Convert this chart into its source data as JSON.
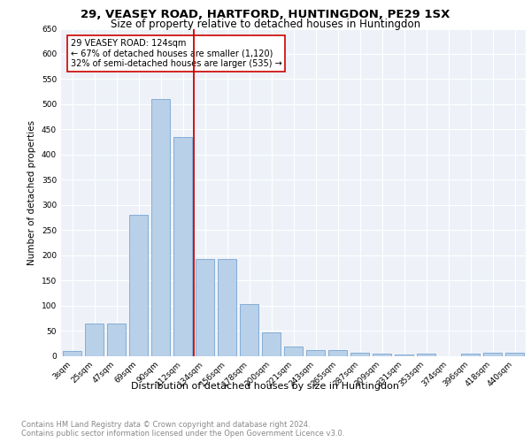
{
  "title1": "29, VEASEY ROAD, HARTFORD, HUNTINGDON, PE29 1SX",
  "title2": "Size of property relative to detached houses in Huntingdon",
  "xlabel": "Distribution of detached houses by size in Huntingdon",
  "ylabel": "Number of detached properties",
  "categories": [
    "3sqm",
    "25sqm",
    "47sqm",
    "69sqm",
    "90sqm",
    "112sqm",
    "134sqm",
    "156sqm",
    "178sqm",
    "200sqm",
    "221sqm",
    "243sqm",
    "265sqm",
    "287sqm",
    "309sqm",
    "331sqm",
    "353sqm",
    "374sqm",
    "396sqm",
    "418sqm",
    "440sqm"
  ],
  "values": [
    10,
    65,
    65,
    280,
    510,
    435,
    192,
    192,
    102,
    47,
    18,
    12,
    12,
    6,
    4,
    2,
    4,
    0,
    5,
    6,
    6
  ],
  "bar_color": "#b8d0e8",
  "bar_edge_color": "#6699cc",
  "vline_color": "#cc0000",
  "annotation_text": "29 VEASEY ROAD: 124sqm\n← 67% of detached houses are smaller (1,120)\n32% of semi-detached houses are larger (535) →",
  "annotation_box_color": "#cc0000",
  "ylim": [
    0,
    650
  ],
  "yticks": [
    0,
    50,
    100,
    150,
    200,
    250,
    300,
    350,
    400,
    450,
    500,
    550,
    600,
    650
  ],
  "bg_color": "#eef2f8",
  "grid_color": "#ffffff",
  "footer1": "Contains HM Land Registry data © Crown copyright and database right 2024.",
  "footer2": "Contains public sector information licensed under the Open Government Licence v3.0.",
  "title1_fontsize": 9.5,
  "title2_fontsize": 8.5,
  "xlabel_fontsize": 8,
  "ylabel_fontsize": 7.5,
  "tick_fontsize": 6.5,
  "annotation_fontsize": 7,
  "footer_fontsize": 6
}
